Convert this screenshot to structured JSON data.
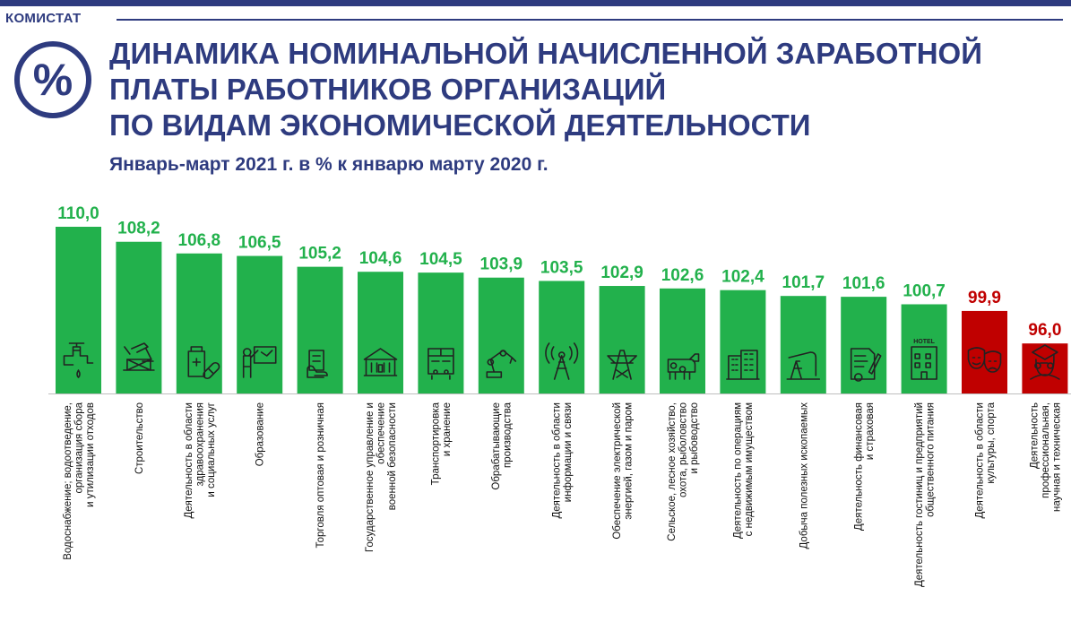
{
  "header": {
    "brand": "КОМИСТАТ",
    "logo_symbol": "%",
    "title_lines": [
      "ДИНАМИКА НОМИНАЛЬНОЙ НАЧИСЛЕННОЙ ЗАРАБОТНОЙ",
      "ПЛАТЫ РАБОТНИКОВ ОРГАНИЗАЦИЙ",
      "ПО ВИДАМ ЭКОНОМИЧЕСКОЙ ДЕЯТЕЛЬНОСТИ"
    ],
    "subtitle": "Январь-март 2021 г. в % к январю марту 2020 г."
  },
  "colors": {
    "brand": "#2e3b7f",
    "growth": "#22b14c",
    "decline": "#c00000"
  },
  "chart_data": {
    "type": "bar",
    "title": "ДИНАМИКА НОМИНАЛЬНОЙ НАЧИСЛЕННОЙ ЗАРАБОТНОЙ ПЛАТЫ РАБОТНИКОВ ОРГАНИЗАЦИЙ ПО ВИДАМ ЭКОНОМИЧЕСКОЙ ДЕЯТЕЛЬНОСТИ",
    "subtitle": "Январь-март 2021 г. в % к январю марту 2020 г.",
    "categories": [
      [
        "Водоснабжение; водоотведение,",
        "организация сбора",
        "и утилизации отходов"
      ],
      [
        "Строительство"
      ],
      [
        "Деятельность в области",
        "здравоохранения",
        "и социальных услуг"
      ],
      [
        "Образование"
      ],
      [
        "Торговля оптовая и розничная"
      ],
      [
        "Государственное управление и",
        "обеспечение",
        "военной безопасности"
      ],
      [
        "Транспортировка",
        "и хранение"
      ],
      [
        "Обрабатывающие",
        "производства"
      ],
      [
        "Деятельность в области",
        "информации и связи"
      ],
      [
        "Обеспечение электрической",
        "энергией, газом и паром"
      ],
      [
        "Сельское, лесное хозяйство,",
        "охота, рыболовство",
        "и рыбоводство"
      ],
      [
        "Деятельность по операциям",
        "с недвижимым имуществом"
      ],
      [
        "Добыча полезных ископаемых"
      ],
      [
        "Деятельность финансовая",
        "и страховая"
      ],
      [
        "Деятельность гостиниц и предприятий",
        "общественного питания"
      ],
      [
        "Деятельность в области",
        "культуры, спорта"
      ],
      [
        "Деятельность",
        "профессиональная,",
        "научная и техническая"
      ]
    ],
    "values": [
      110.0,
      108.2,
      106.8,
      106.5,
      105.2,
      104.6,
      104.5,
      103.9,
      103.5,
      102.9,
      102.6,
      102.4,
      101.7,
      101.6,
      100.7,
      99.9,
      96.0
    ],
    "labels": [
      "110,0",
      "108,2",
      "106,8",
      "106,5",
      "105,2",
      "104,6",
      "104,5",
      "103,9",
      "103,5",
      "102,9",
      "102,6",
      "102,4",
      "101,7",
      "101,6",
      "100,7",
      "99,9",
      "96,0"
    ],
    "icons": [
      "water-tap-icon",
      "construction-icon",
      "medicine-icon",
      "teacher-board-icon",
      "cash-hand-icon",
      "government-building-icon",
      "bus-icon",
      "robot-arm-icon",
      "radio-tower-icon",
      "power-pylon-icon",
      "cow-icon",
      "apartment-building-icon",
      "oil-pump-icon",
      "finance-document-icon",
      "hotel-icon",
      "theater-masks-icon",
      "scientist-icon"
    ],
    "bar_colors": [
      "#22b14c",
      "#22b14c",
      "#22b14c",
      "#22b14c",
      "#22b14c",
      "#22b14c",
      "#22b14c",
      "#22b14c",
      "#22b14c",
      "#22b14c",
      "#22b14c",
      "#22b14c",
      "#22b14c",
      "#22b14c",
      "#22b14c",
      "#c00000",
      "#c00000"
    ],
    "hotel_sign": "HOTEL",
    "ylim": [
      90,
      110
    ],
    "grid": false,
    "legend": "none"
  }
}
